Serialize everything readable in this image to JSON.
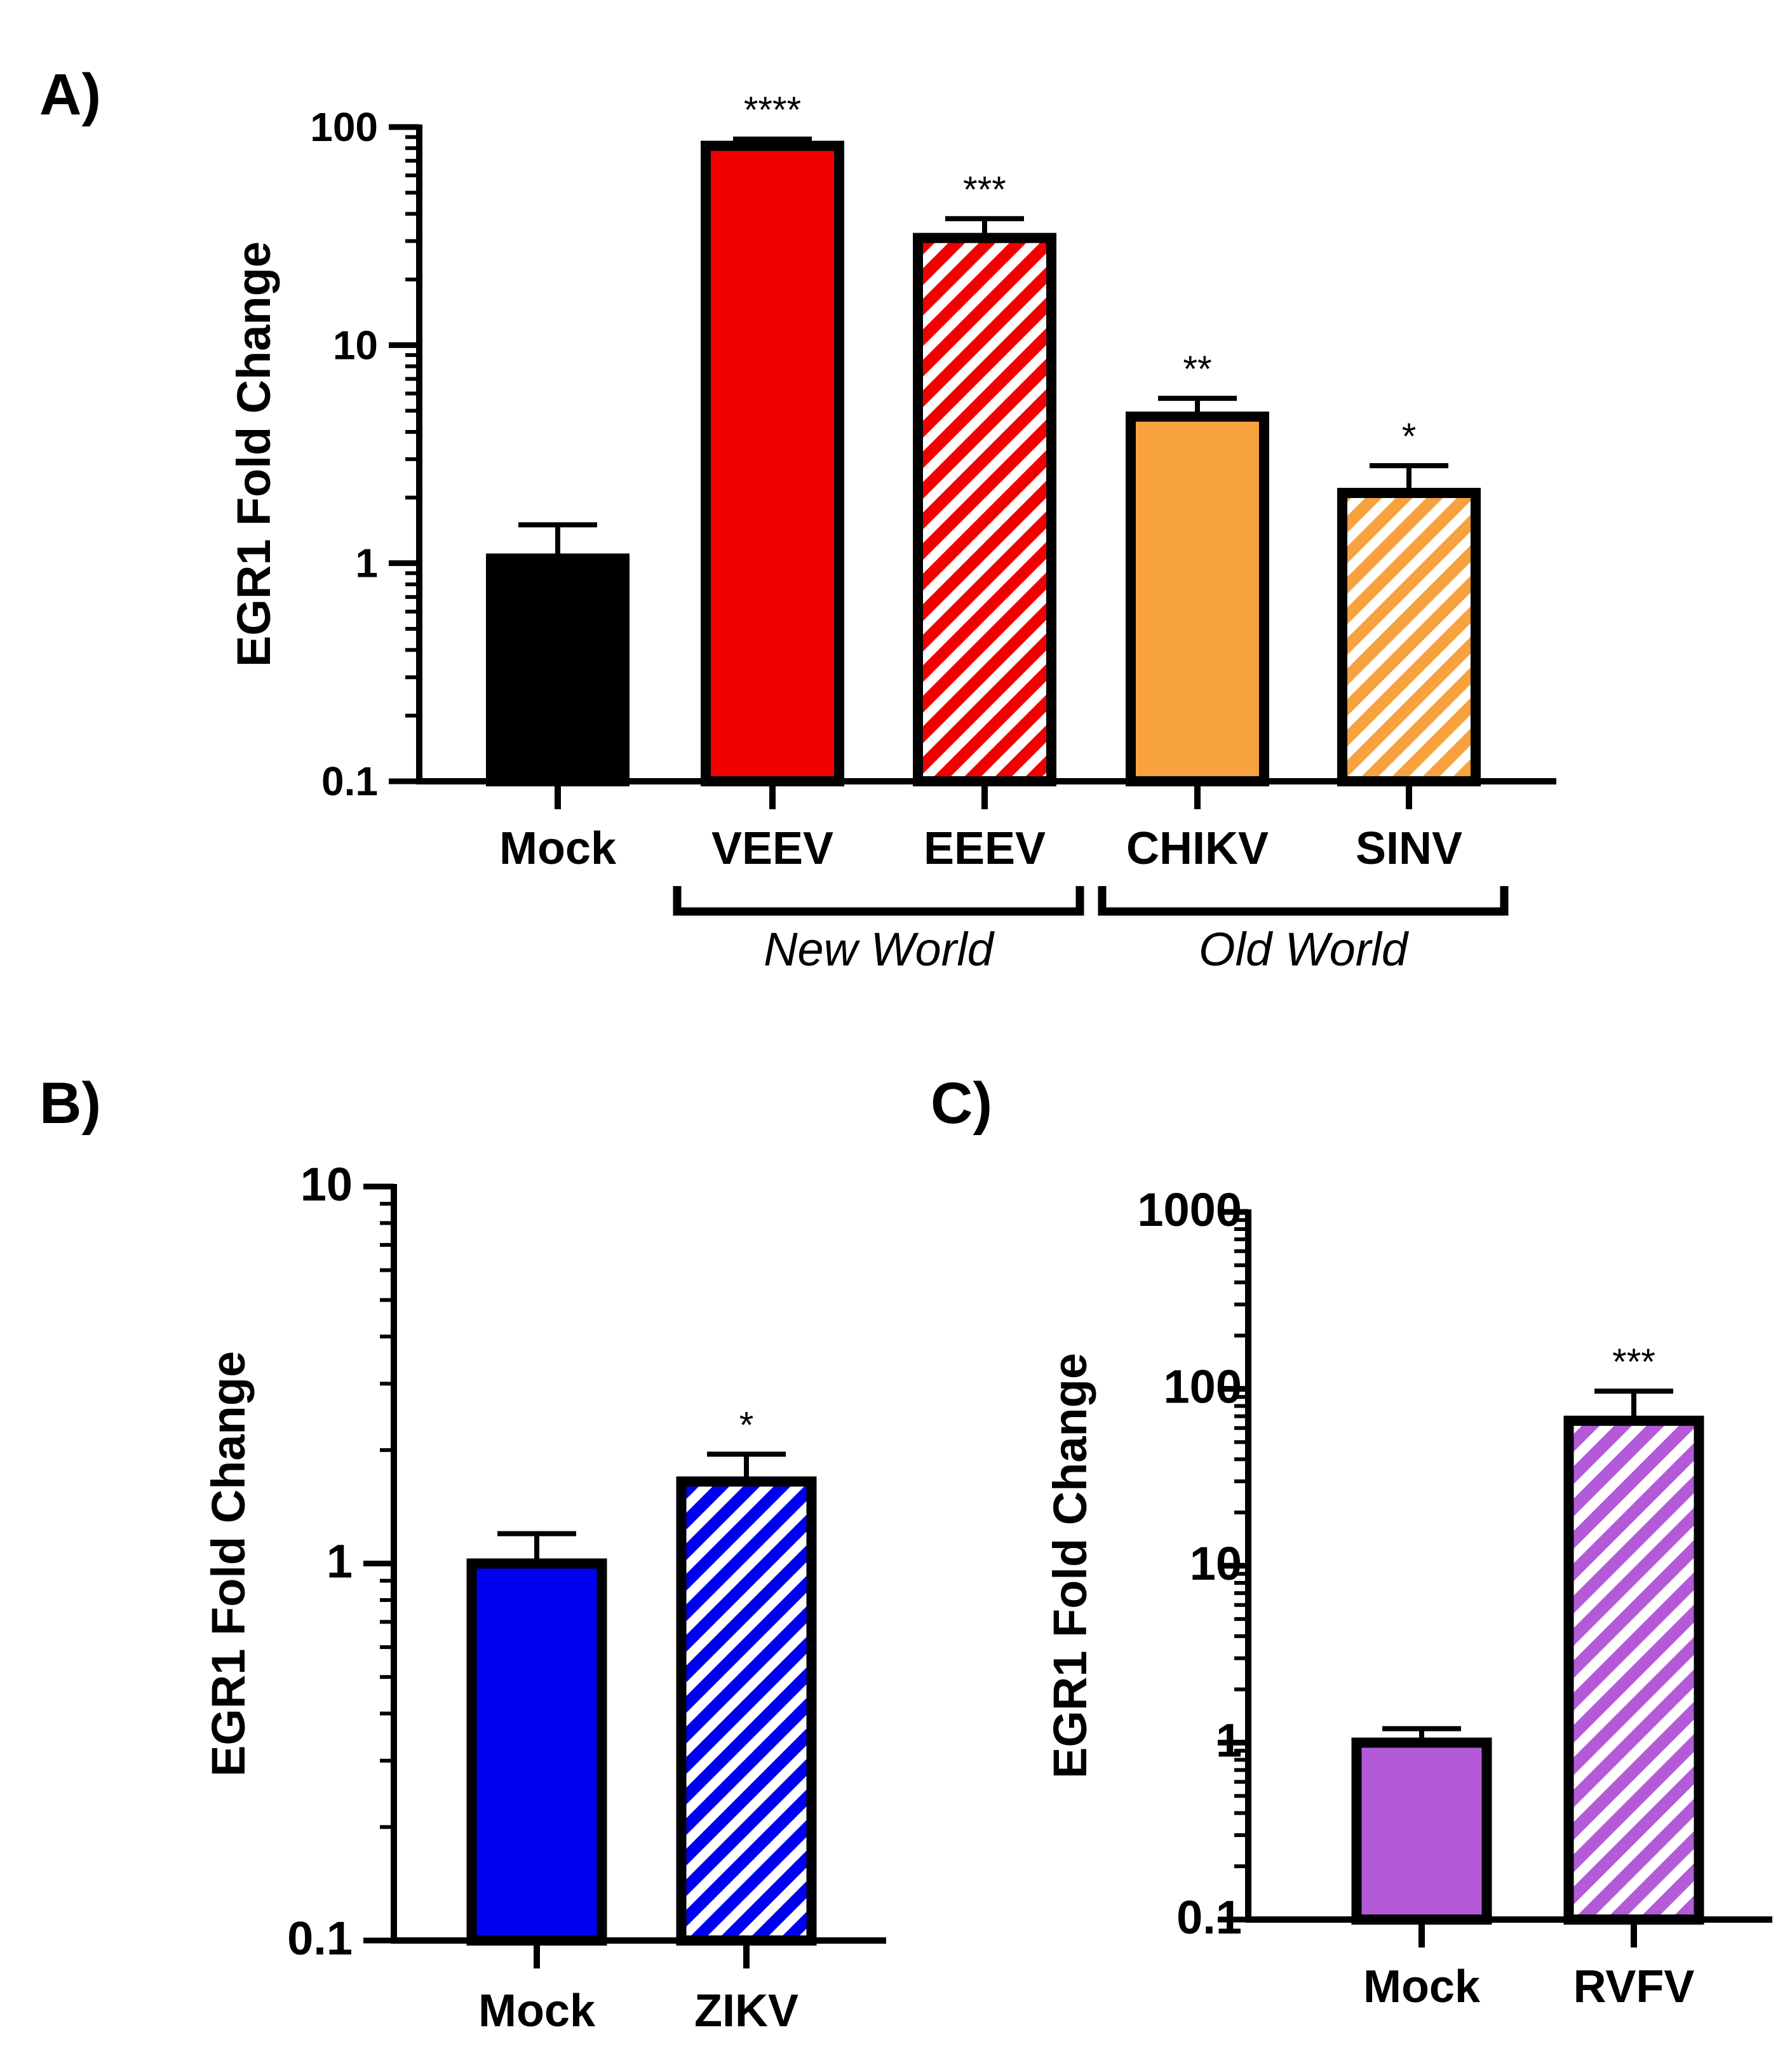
{
  "colors": {
    "black": "#000000",
    "red": "#f20000",
    "orange": "#f7a13f",
    "blue": "#0000f0",
    "purple": "#b45ad8",
    "white": "#ffffff"
  },
  "chart_data": [
    {
      "panel": "A)",
      "type": "bar",
      "scale": "log",
      "ylabel": "EGR1 Fold Change",
      "ylim": [
        0.1,
        100
      ],
      "yticks": [
        0.1,
        1,
        10,
        100
      ],
      "ytick_labels": [
        "0.1",
        "1",
        "10",
        "100"
      ],
      "categories": [
        "Mock",
        "VEEV",
        "EEEV",
        "CHIKV",
        "SINV"
      ],
      "values": [
        1.05,
        82,
        31,
        4.7,
        2.1
      ],
      "errors": [
        1.5,
        88,
        38,
        5.7,
        2.8
      ],
      "significance": [
        "",
        "****",
        "***",
        "**",
        "*"
      ],
      "fills": [
        "black",
        "red",
        "red",
        "orange",
        "orange"
      ],
      "hatched": [
        false,
        false,
        true,
        false,
        true
      ],
      "groups": [
        {
          "label": "New World",
          "from": 1,
          "to": 2
        },
        {
          "label": "Old World",
          "from": 3,
          "to": 4
        }
      ]
    },
    {
      "panel": "B)",
      "type": "bar",
      "scale": "log",
      "ylabel": "EGR1 Fold Change",
      "ylim": [
        0.1,
        10
      ],
      "yticks": [
        0.1,
        1,
        10
      ],
      "ytick_labels": [
        "0.1",
        "1",
        "10"
      ],
      "categories": [
        "Mock",
        "ZIKV"
      ],
      "values": [
        1.0,
        1.65
      ],
      "errors": [
        1.2,
        1.95
      ],
      "significance": [
        "",
        "*"
      ],
      "fills": [
        "blue",
        "blue"
      ],
      "hatched": [
        false,
        true
      ],
      "groups": []
    },
    {
      "panel": "C)",
      "type": "bar",
      "scale": "log",
      "ylabel": "EGR1 Fold  Change",
      "ylim": [
        0.1,
        1000
      ],
      "yticks": [
        0.1,
        1,
        10,
        100,
        1000
      ],
      "ytick_labels": [
        "0.1",
        "1",
        "10",
        "100",
        "1000"
      ],
      "categories": [
        "Mock",
        "RVFV"
      ],
      "values": [
        1.0,
        66
      ],
      "errors": [
        1.2,
        97
      ],
      "significance": [
        "",
        "***"
      ],
      "fills": [
        "purple",
        "purple"
      ],
      "hatched": [
        false,
        true
      ],
      "groups": []
    }
  ]
}
